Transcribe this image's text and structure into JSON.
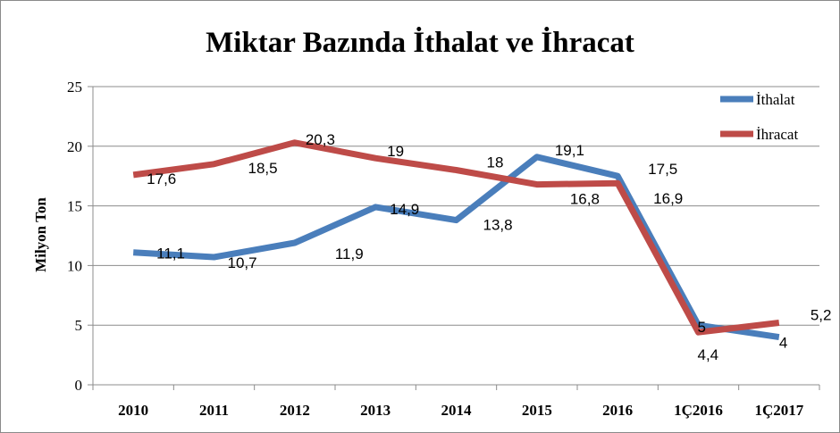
{
  "chart_data": {
    "type": "line",
    "title": "Miktar Bazında İthalat ve İhracat",
    "ylabel": "Milyon Ton",
    "xlabel": "",
    "ylim": [
      0,
      25
    ],
    "yticks": [
      0,
      5,
      10,
      15,
      20,
      25
    ],
    "grid": true,
    "legend_position": "top-right",
    "categories": [
      "2010",
      "2011",
      "2012",
      "2013",
      "2014",
      "2015",
      "2016",
      "1Ç2016",
      "1Ç2017"
    ],
    "series": [
      {
        "name": "İthalat",
        "color": "#4A7EBB",
        "values": [
          11.1,
          10.7,
          11.9,
          14.9,
          13.8,
          19.1,
          17.5,
          5,
          4
        ],
        "labels": [
          "11,1",
          "10,7",
          "11,9",
          "14,9",
          "13,8",
          "19,1",
          "17,5",
          "5",
          "4"
        ]
      },
      {
        "name": "İhracat",
        "color": "#BE4B48",
        "values": [
          17.6,
          18.5,
          20.3,
          19,
          18,
          16.8,
          16.9,
          4.4,
          5.2
        ],
        "labels": [
          "17,6",
          "18,5",
          "20,3",
          "19",
          "18",
          "16,8",
          "16,9",
          "4,4",
          "5,2"
        ]
      }
    ]
  }
}
